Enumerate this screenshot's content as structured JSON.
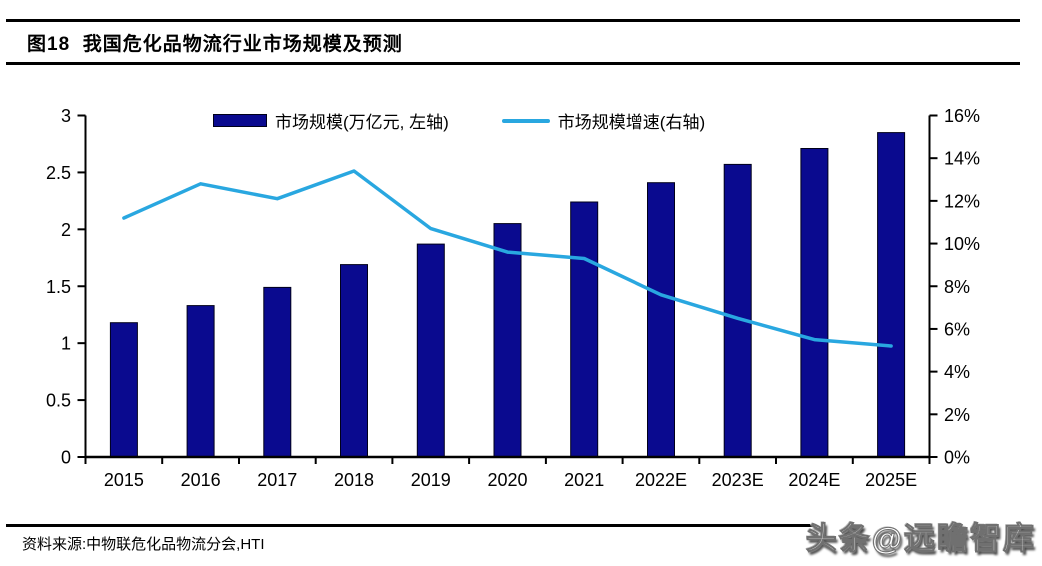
{
  "header": {
    "title": "图18  我国危化品物流行业市场规模及预测"
  },
  "footer": {
    "source": "资料来源:中物联危化品物流分会,HTI",
    "watermark": "头条@远瞻智库"
  },
  "colors": {
    "bar": "#0a0a8f",
    "bar_stroke": "#00001a",
    "line": "#29a7e0",
    "axis": "#000000",
    "background": "#ffffff"
  },
  "chart_data": {
    "type": "bar",
    "subtype": "bar+line dual-axis",
    "categories": [
      "2015",
      "2016",
      "2017",
      "2018",
      "2019",
      "2020",
      "2021",
      "2022E",
      "2023E",
      "2024E",
      "2025E"
    ],
    "series": [
      {
        "name": "市场规模(万亿元, 左轴)",
        "type": "bar",
        "axis": "left",
        "values": [
          1.18,
          1.33,
          1.49,
          1.69,
          1.87,
          2.05,
          2.24,
          2.41,
          2.57,
          2.71,
          2.85
        ]
      },
      {
        "name": "市场规模增速(右轴)",
        "type": "line",
        "axis": "right",
        "values": [
          11.2,
          12.8,
          12.1,
          13.4,
          10.7,
          9.6,
          9.3,
          7.6,
          6.5,
          5.5,
          5.2
        ]
      }
    ],
    "left_axis": {
      "min": 0,
      "max": 3,
      "step": 0.5,
      "ticks": [
        "0",
        "0.5",
        "1",
        "1.5",
        "2",
        "2.5",
        "3"
      ]
    },
    "right_axis": {
      "min": 0,
      "max": 16,
      "step": 2,
      "ticks": [
        "0%",
        "2%",
        "4%",
        "6%",
        "8%",
        "10%",
        "12%",
        "14%",
        "16%"
      ]
    },
    "grid": false,
    "legend_position": "top"
  }
}
